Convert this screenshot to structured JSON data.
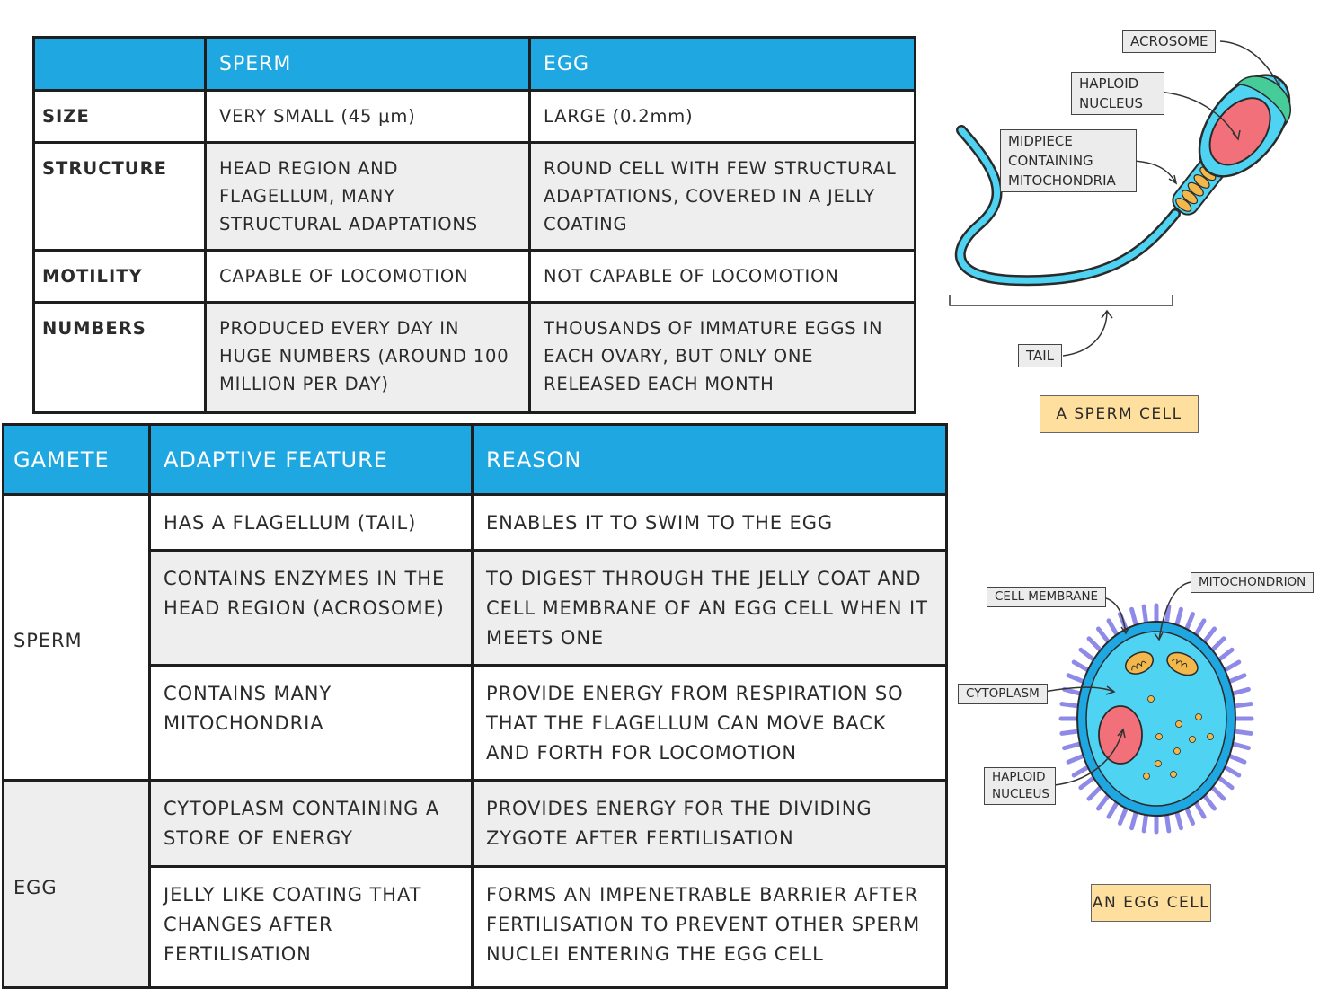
{
  "comparison_table": {
    "headers": [
      "",
      "SPERM",
      "EGG"
    ],
    "rows": [
      {
        "label": "SIZE",
        "sperm": "VERY SMALL (45 μm)",
        "egg": "LARGE (0.2mm)"
      },
      {
        "label": "STRUCTURE",
        "sperm": "HEAD REGION AND FLAGELLUM, MANY STRUCTURAL ADAPTATIONS",
        "egg": "ROUND CELL WITH FEW STRUCTURAL ADAPTATIONS, COVERED IN A JELLY COATING"
      },
      {
        "label": "MOTILITY",
        "sperm": "CAPABLE OF LOCOMOTION",
        "egg": "NOT CAPABLE OF LOCOMOTION"
      },
      {
        "label": "NUMBERS",
        "sperm": "PRODUCED EVERY DAY IN HUGE NUMBERS (AROUND 100 MILLION PER DAY)",
        "egg": "THOUSANDS OF IMMATURE EGGS IN EACH OVARY, BUT ONLY ONE RELEASED EACH MONTH"
      }
    ]
  },
  "adaptations_table": {
    "headers": [
      "GAMETE",
      "ADAPTIVE FEATURE",
      "REASON"
    ],
    "groups": [
      {
        "gamete": "SPERM",
        "rows": [
          {
            "feature": "HAS A FLAGELLUM (TAIL)",
            "reason": "ENABLES IT TO SWIM TO THE EGG"
          },
          {
            "feature": "CONTAINS ENZYMES IN THE HEAD REGION (ACROSOME)",
            "reason": "TO DIGEST THROUGH THE JELLY COAT AND CELL MEMBRANE OF AN EGG CELL WHEN IT MEETS ONE"
          },
          {
            "feature": "CONTAINS MANY MITOCHONDRIA",
            "reason": "PROVIDE ENERGY FROM RESPIRATION SO THAT THE FLAGELLUM CAN MOVE BACK AND FORTH FOR LOCOMOTION"
          }
        ]
      },
      {
        "gamete": "EGG",
        "rows": [
          {
            "feature": "CYTOPLASM CONTAINING A STORE OF ENERGY",
            "reason": "PROVIDES ENERGY FOR THE DIVIDING ZYGOTE AFTER FERTILISATION"
          },
          {
            "feature": "JELLY LIKE COATING THAT CHANGES AFTER FERTILISATION",
            "reason": "FORMS AN IMPENETRABLE BARRIER AFTER FERTILISATION TO PREVENT OTHER SPERM NUCLEI ENTERING THE EGG CELL"
          }
        ]
      }
    ]
  },
  "sperm_diagram": {
    "caption": "A SPERM CELL",
    "labels": {
      "acrosome": "ACROSOME",
      "haploid_nucleus": "HAPLOID NUCLEUS",
      "midpiece": "MIDPIECE CONTAINING MITOCHONDRIA",
      "tail": "TAIL"
    }
  },
  "egg_diagram": {
    "caption": "AN EGG CELL",
    "labels": {
      "cell_membrane": "CELL MEMBRANE",
      "mitochondrion": "MITOCHONDRION",
      "cytoplasm": "CYTOPLASM",
      "haploid_nucleus": "HAPLOID NUCLEUS"
    }
  },
  "colors": {
    "header_blue": "#1ea7e1",
    "cell_cyan": "#4fd3f2",
    "nucleus_red": "#f2707a",
    "acrosome_green": "#46cc98",
    "mitochondria_orange": "#f2b84b",
    "egg_villi_purple": "#8f8ae8",
    "caption_yellow": "#ffdf9e"
  }
}
